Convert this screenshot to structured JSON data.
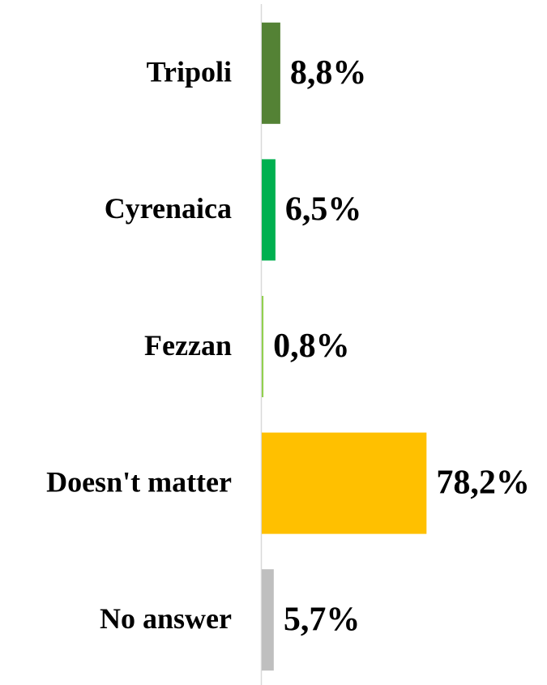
{
  "chart_data": {
    "type": "hbar",
    "categories": [
      "Tripoli",
      "Cyrenaica",
      "Fezzan",
      "Doesn't matter",
      "No answer"
    ],
    "values": [
      8.8,
      6.5,
      0.8,
      78.2,
      5.7
    ],
    "value_labels": [
      "8,8%",
      "6,5%",
      "0,8%",
      "78,2%",
      "5,7%"
    ],
    "colors": [
      "#548235",
      "#00b050",
      "#92d050",
      "#ffc000",
      "#bfbfbf"
    ],
    "xlim": [
      0,
      100
    ]
  }
}
